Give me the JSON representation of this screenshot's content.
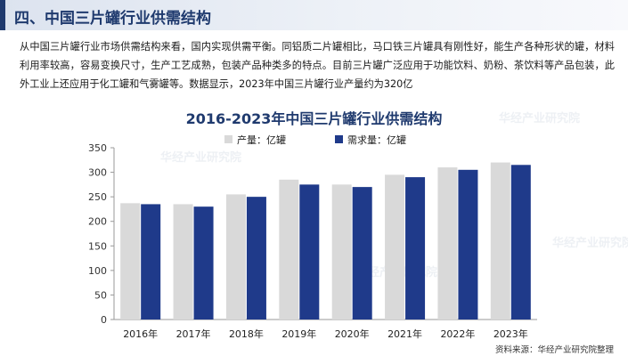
{
  "header": {
    "title": "四、中国三片罐行业供需结构"
  },
  "paragraph": "从中国三片罐行业市场供需结构来看，国内实现供需平衡。同铝质二片罐相比，马口铁三片罐具有刚性好，能生产各种形状的罐，材料利用率较高，容易变换尺寸，生产工艺成熟，包装产品种类多的特点。目前三片罐广泛应用于功能饮料、奶粉、茶饮料等产品包装，此外工业上还应用于化工罐和气雾罐等。数据显示，2023年中国三片罐行业产量约为320亿",
  "source": "资料来源：华经产业研究院整理",
  "watermark": "华经产业研究院",
  "chart_data": {
    "type": "bar",
    "title": "2016-2023年中国三片罐行业供需结构",
    "categories": [
      "2016年",
      "2017年",
      "2018年",
      "2019年",
      "2020年",
      "2021年",
      "2022年",
      "2023年"
    ],
    "series": [
      {
        "name": "产量：亿罐",
        "color": "#d9d9d9",
        "values": [
          237,
          235,
          255,
          285,
          275,
          295,
          310,
          320
        ]
      },
      {
        "name": "需求量：亿罐",
        "color": "#1f3a8a",
        "values": [
          235,
          230,
          250,
          275,
          270,
          290,
          305,
          315
        ]
      }
    ],
    "ylim": [
      0,
      350
    ],
    "yticks": [
      0,
      50,
      100,
      150,
      200,
      250,
      300,
      350
    ],
    "legend": "top-left",
    "grid": false
  }
}
